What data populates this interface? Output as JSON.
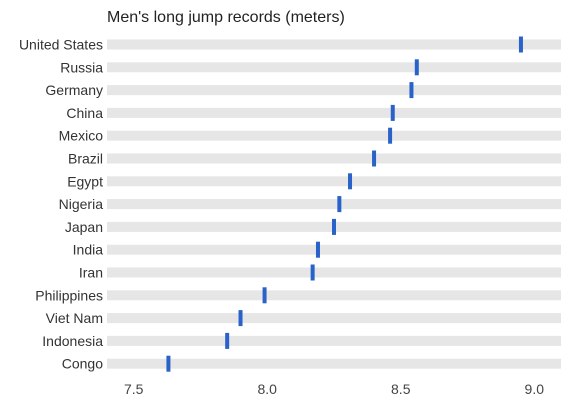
{
  "chart_data": {
    "type": "scatter",
    "title": "Men's long jump records (meters)",
    "categories": [
      "United States",
      "Russia",
      "Germany",
      "China",
      "Mexico",
      "Brazil",
      "Egypt",
      "Nigeria",
      "Japan",
      "India",
      "Iran",
      "Philippines",
      "Viet Nam",
      "Indonesia",
      "Congo"
    ],
    "values": [
      8.95,
      8.56,
      8.54,
      8.47,
      8.46,
      8.4,
      8.31,
      8.27,
      8.25,
      8.19,
      8.17,
      7.99,
      7.9,
      7.85,
      7.63
    ],
    "xlim": [
      7.4,
      9.1
    ],
    "xticks": [
      7.5,
      8.0,
      8.5,
      9.0
    ],
    "xtick_labels": [
      "7.5",
      "8.0",
      "8.5",
      "9.0"
    ],
    "band_color": "#e6e6e6",
    "marker_color": "#2962c8",
    "grid": false,
    "legend": "none"
  }
}
